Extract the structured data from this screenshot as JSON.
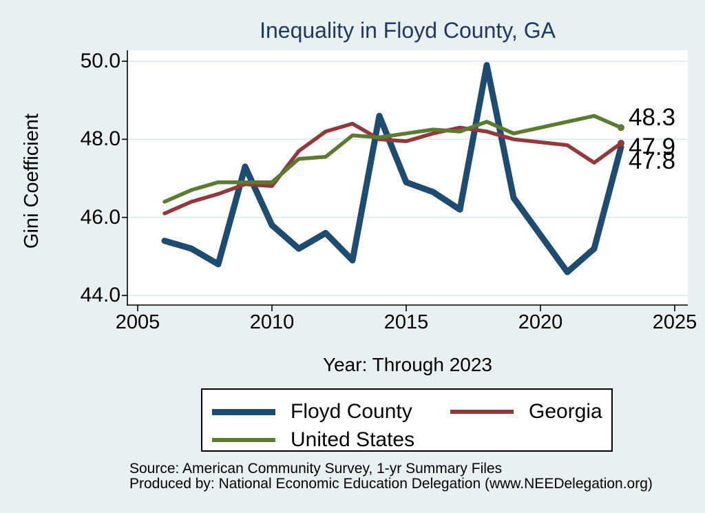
{
  "chart_data": {
    "type": "line",
    "title": "Inequality in Floyd County, GA",
    "xlabel": "Year: Through 2023",
    "ylabel": "Gini Coefficient",
    "x": [
      2006,
      2007,
      2008,
      2009,
      2010,
      2011,
      2012,
      2013,
      2014,
      2015,
      2016,
      2017,
      2018,
      2019,
      2020,
      2021,
      2022,
      2023
    ],
    "series": [
      {
        "name": "Floyd County",
        "color": "#1e4c70",
        "line_width": 9,
        "end_label": "47.8",
        "end_dot": false,
        "values": [
          45.4,
          45.2,
          44.8,
          47.3,
          45.8,
          45.2,
          45.6,
          44.9,
          48.6,
          46.9,
          46.65,
          46.2,
          49.9,
          46.5,
          null,
          44.6,
          45.2,
          47.8
        ]
      },
      {
        "name": "Georgia",
        "color": "#903a3d",
        "line_width": 5.5,
        "end_label": "47.9",
        "end_dot": true,
        "values": [
          46.1,
          46.4,
          46.6,
          46.85,
          46.8,
          47.7,
          48.2,
          48.4,
          48.0,
          47.95,
          48.15,
          48.3,
          48.2,
          48.0,
          null,
          47.85,
          47.4,
          47.9
        ]
      },
      {
        "name": "United States",
        "color": "#5d7a33",
        "line_width": 5.5,
        "end_label": "48.3",
        "end_dot": true,
        "values": [
          46.4,
          46.7,
          46.9,
          46.9,
          46.9,
          47.5,
          47.55,
          48.1,
          48.05,
          48.15,
          48.25,
          48.2,
          48.45,
          48.15,
          null,
          48.45,
          48.6,
          48.3
        ]
      }
    ],
    "xticks": {
      "values": [
        2005,
        2010,
        2015,
        2020,
        2025
      ],
      "labels": [
        "2005",
        "2010",
        "2015",
        "2020",
        "2025"
      ]
    },
    "yticks": {
      "values": [
        50,
        48,
        46,
        44
      ],
      "labels": [
        "50.0",
        "48.0",
        "46.0",
        "44.0"
      ]
    },
    "xlim": [
      2004.6,
      2025.5
    ],
    "ylim": [
      43.7,
      50.3
    ],
    "grid": true,
    "legend_position": "bottom"
  },
  "footer": {
    "source_line": "Source: American Community Survey, 1-yr Summary Files",
    "produced_line": "Produced by: National Economic Education Delegation (www.NEEDelegation.org)"
  },
  "colors": {
    "background": "#e9f0f2",
    "plot_background": "#ffffff",
    "title": "#1f3864",
    "gridline": "#dde9ec",
    "axis": "#000000"
  }
}
